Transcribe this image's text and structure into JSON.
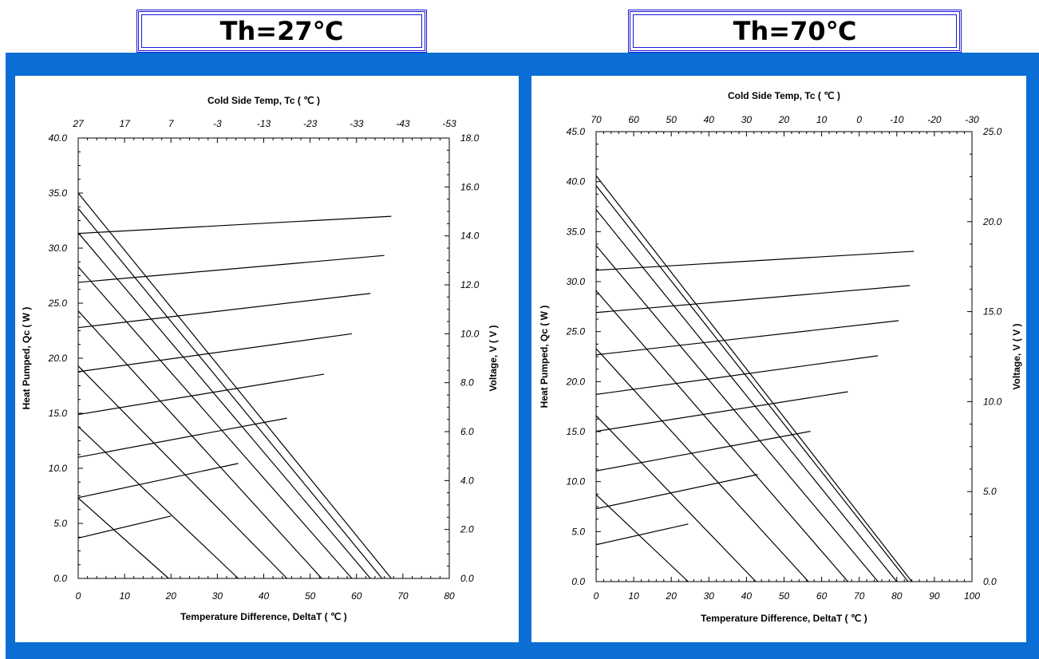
{
  "headers": {
    "left": "Th=27℃",
    "right": "Th=70℃"
  },
  "colors": {
    "band": "#0a6ed4",
    "title_border": "#1a1adb",
    "line": "#000000"
  },
  "chart_data": [
    {
      "type": "line",
      "header": "Th=27℃",
      "top_title": "Cold Side Temp, Tc ( ℃ )",
      "xlabel": "Temperature Difference, DeltaT ( ℃ )",
      "ylabel": "Heat Pumped, Qc ( W )",
      "y2label": "Voltage, V ( V )",
      "xlim": [
        0,
        80
      ],
      "ylim": [
        0,
        40
      ],
      "y2lim": [
        0,
        18
      ],
      "x_ticks": [
        "0",
        "10",
        "20",
        "30",
        "40",
        "50",
        "60",
        "70",
        "80"
      ],
      "y_ticks": [
        "0.0",
        "5.0",
        "10.0",
        "15.0",
        "20.0",
        "25.0",
        "30.0",
        "35.0",
        "40.0"
      ],
      "y2_ticks": [
        "0.0",
        "2.0",
        "4.0",
        "6.0",
        "8.0",
        "10.0",
        "12.0",
        "14.0",
        "16.0",
        "18.0"
      ],
      "top_ticks": [
        "27",
        "17",
        "7",
        "-3",
        "-13",
        "-23",
        "-33",
        "-43",
        "-53"
      ],
      "qc_series": [
        {
          "x": [
            0,
            19.5
          ],
          "y": [
            7.3,
            0
          ]
        },
        {
          "x": [
            0,
            34.5
          ],
          "y": [
            13.8,
            0
          ]
        },
        {
          "x": [
            0,
            45
          ],
          "y": [
            19.3,
            0
          ]
        },
        {
          "x": [
            0,
            52.5
          ],
          "y": [
            24.3,
            0
          ]
        },
        {
          "x": [
            0,
            59
          ],
          "y": [
            28.3,
            0
          ]
        },
        {
          "x": [
            0,
            63
          ],
          "y": [
            31.4,
            0
          ]
        },
        {
          "x": [
            0,
            65.5
          ],
          "y": [
            33.6,
            0
          ]
        },
        {
          "x": [
            0,
            67.5
          ],
          "y": [
            35,
            0
          ]
        }
      ],
      "voltage_series": [
        {
          "x": [
            0,
            20
          ],
          "y": [
            1.65,
            2.55
          ]
        },
        {
          "x": [
            0,
            34.5
          ],
          "y": [
            3.3,
            4.7
          ]
        },
        {
          "x": [
            0,
            45
          ],
          "y": [
            4.95,
            6.55
          ]
        },
        {
          "x": [
            0,
            53
          ],
          "y": [
            6.7,
            8.35
          ]
        },
        {
          "x": [
            0,
            59
          ],
          "y": [
            8.45,
            10.0
          ]
        },
        {
          "x": [
            0,
            63
          ],
          "y": [
            10.25,
            11.65
          ]
        },
        {
          "x": [
            0,
            66
          ],
          "y": [
            12.1,
            13.2
          ]
        },
        {
          "x": [
            0,
            67.5
          ],
          "y": [
            14.1,
            14.8
          ]
        }
      ]
    },
    {
      "type": "line",
      "header": "Th=70℃",
      "top_title": "Cold Side Temp, Tc ( ℃ )",
      "xlabel": "Temperature Difference, DeltaT ( ℃ )",
      "ylabel": "Heat Pumped, Qc ( W )",
      "y2label": "Voltage, V ( V )",
      "xlim": [
        0,
        100
      ],
      "ylim": [
        0,
        45
      ],
      "y2lim": [
        0,
        25
      ],
      "x_ticks": [
        "0",
        "10",
        "20",
        "30",
        "40",
        "50",
        "60",
        "70",
        "80",
        "90",
        "100"
      ],
      "y_ticks": [
        "0.0",
        "5.0",
        "10.0",
        "15.0",
        "20.0",
        "25.0",
        "30.0",
        "35.0",
        "40.0",
        "45.0"
      ],
      "y2_ticks": [
        "0.0",
        "5.0",
        "10.0",
        "15.0",
        "20.0",
        "25.0"
      ],
      "top_ticks": [
        "70",
        "60",
        "50",
        "40",
        "30",
        "20",
        "10",
        "0",
        "-10",
        "-20",
        "-30"
      ],
      "qc_series": [
        {
          "x": [
            0,
            24.5
          ],
          "y": [
            8.7,
            0
          ]
        },
        {
          "x": [
            0,
            42.5
          ],
          "y": [
            16.6,
            0
          ]
        },
        {
          "x": [
            0,
            56.5
          ],
          "y": [
            23.3,
            0
          ]
        },
        {
          "x": [
            0,
            67
          ],
          "y": [
            29.1,
            0
          ]
        },
        {
          "x": [
            0,
            75
          ],
          "y": [
            33.6,
            0
          ]
        },
        {
          "x": [
            0,
            80
          ],
          "y": [
            37.2,
            0
          ]
        },
        {
          "x": [
            0,
            83
          ],
          "y": [
            39.6,
            0
          ]
        },
        {
          "x": [
            0,
            84
          ],
          "y": [
            40.6,
            0
          ]
        }
      ],
      "voltage_series": [
        {
          "x": [
            0,
            24.5
          ],
          "y": [
            2.05,
            3.2
          ]
        },
        {
          "x": [
            0,
            43
          ],
          "y": [
            4.05,
            5.95
          ]
        },
        {
          "x": [
            0,
            57
          ],
          "y": [
            6.15,
            8.35
          ]
        },
        {
          "x": [
            0,
            67
          ],
          "y": [
            8.35,
            10.55
          ]
        },
        {
          "x": [
            0,
            75
          ],
          "y": [
            10.4,
            12.55
          ]
        },
        {
          "x": [
            0,
            80.5
          ],
          "y": [
            12.6,
            14.5
          ]
        },
        {
          "x": [
            0,
            83.5
          ],
          "y": [
            14.95,
            16.45
          ]
        },
        {
          "x": [
            0,
            84.5
          ],
          "y": [
            17.3,
            18.35
          ]
        }
      ]
    }
  ]
}
